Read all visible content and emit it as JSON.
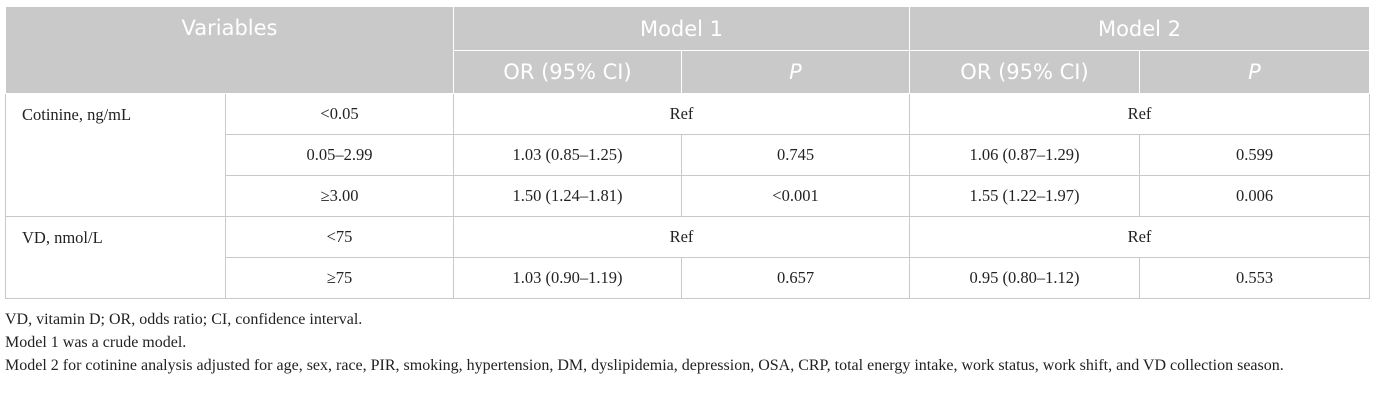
{
  "header": {
    "variables": "Variables",
    "model1": "Model 1",
    "model2": "Model 2",
    "or_ci": "OR (95% CI)",
    "p": "P"
  },
  "groups": [
    {
      "variable": "Cotinine, ng/mL",
      "rows": [
        {
          "level": "<0.05",
          "ref": "Ref",
          "ref2": "Ref"
        },
        {
          "level": "0.05–2.99",
          "m1_or": "1.03 (0.85–1.25)",
          "m1_p": "0.745",
          "m2_or": "1.06 (0.87–1.29)",
          "m2_p": "0.599"
        },
        {
          "level": "≥3.00",
          "m1_or": "1.50 (1.24–1.81)",
          "m1_p": "<0.001",
          "m2_or": "1.55 (1.22–1.97)",
          "m2_p": "0.006"
        }
      ]
    },
    {
      "variable": "VD, nmol/L",
      "rows": [
        {
          "level": "<75",
          "ref": "Ref",
          "ref2": "Ref"
        },
        {
          "level": "≥75",
          "m1_or": "1.03 (0.90–1.19)",
          "m1_p": "0.657",
          "m2_or": "0.95 (0.80–1.12)",
          "m2_p": "0.553"
        }
      ]
    }
  ],
  "notes": [
    "VD, vitamin D; OR, odds ratio; CI, confidence interval.",
    "Model 1 was a crude model.",
    "Model 2 for cotinine analysis adjusted for age, sex, race, PIR, smoking, hypertension, DM, dyslipidemia, depression, OSA, CRP, total energy intake, work status, work shift, and VD collection season."
  ]
}
